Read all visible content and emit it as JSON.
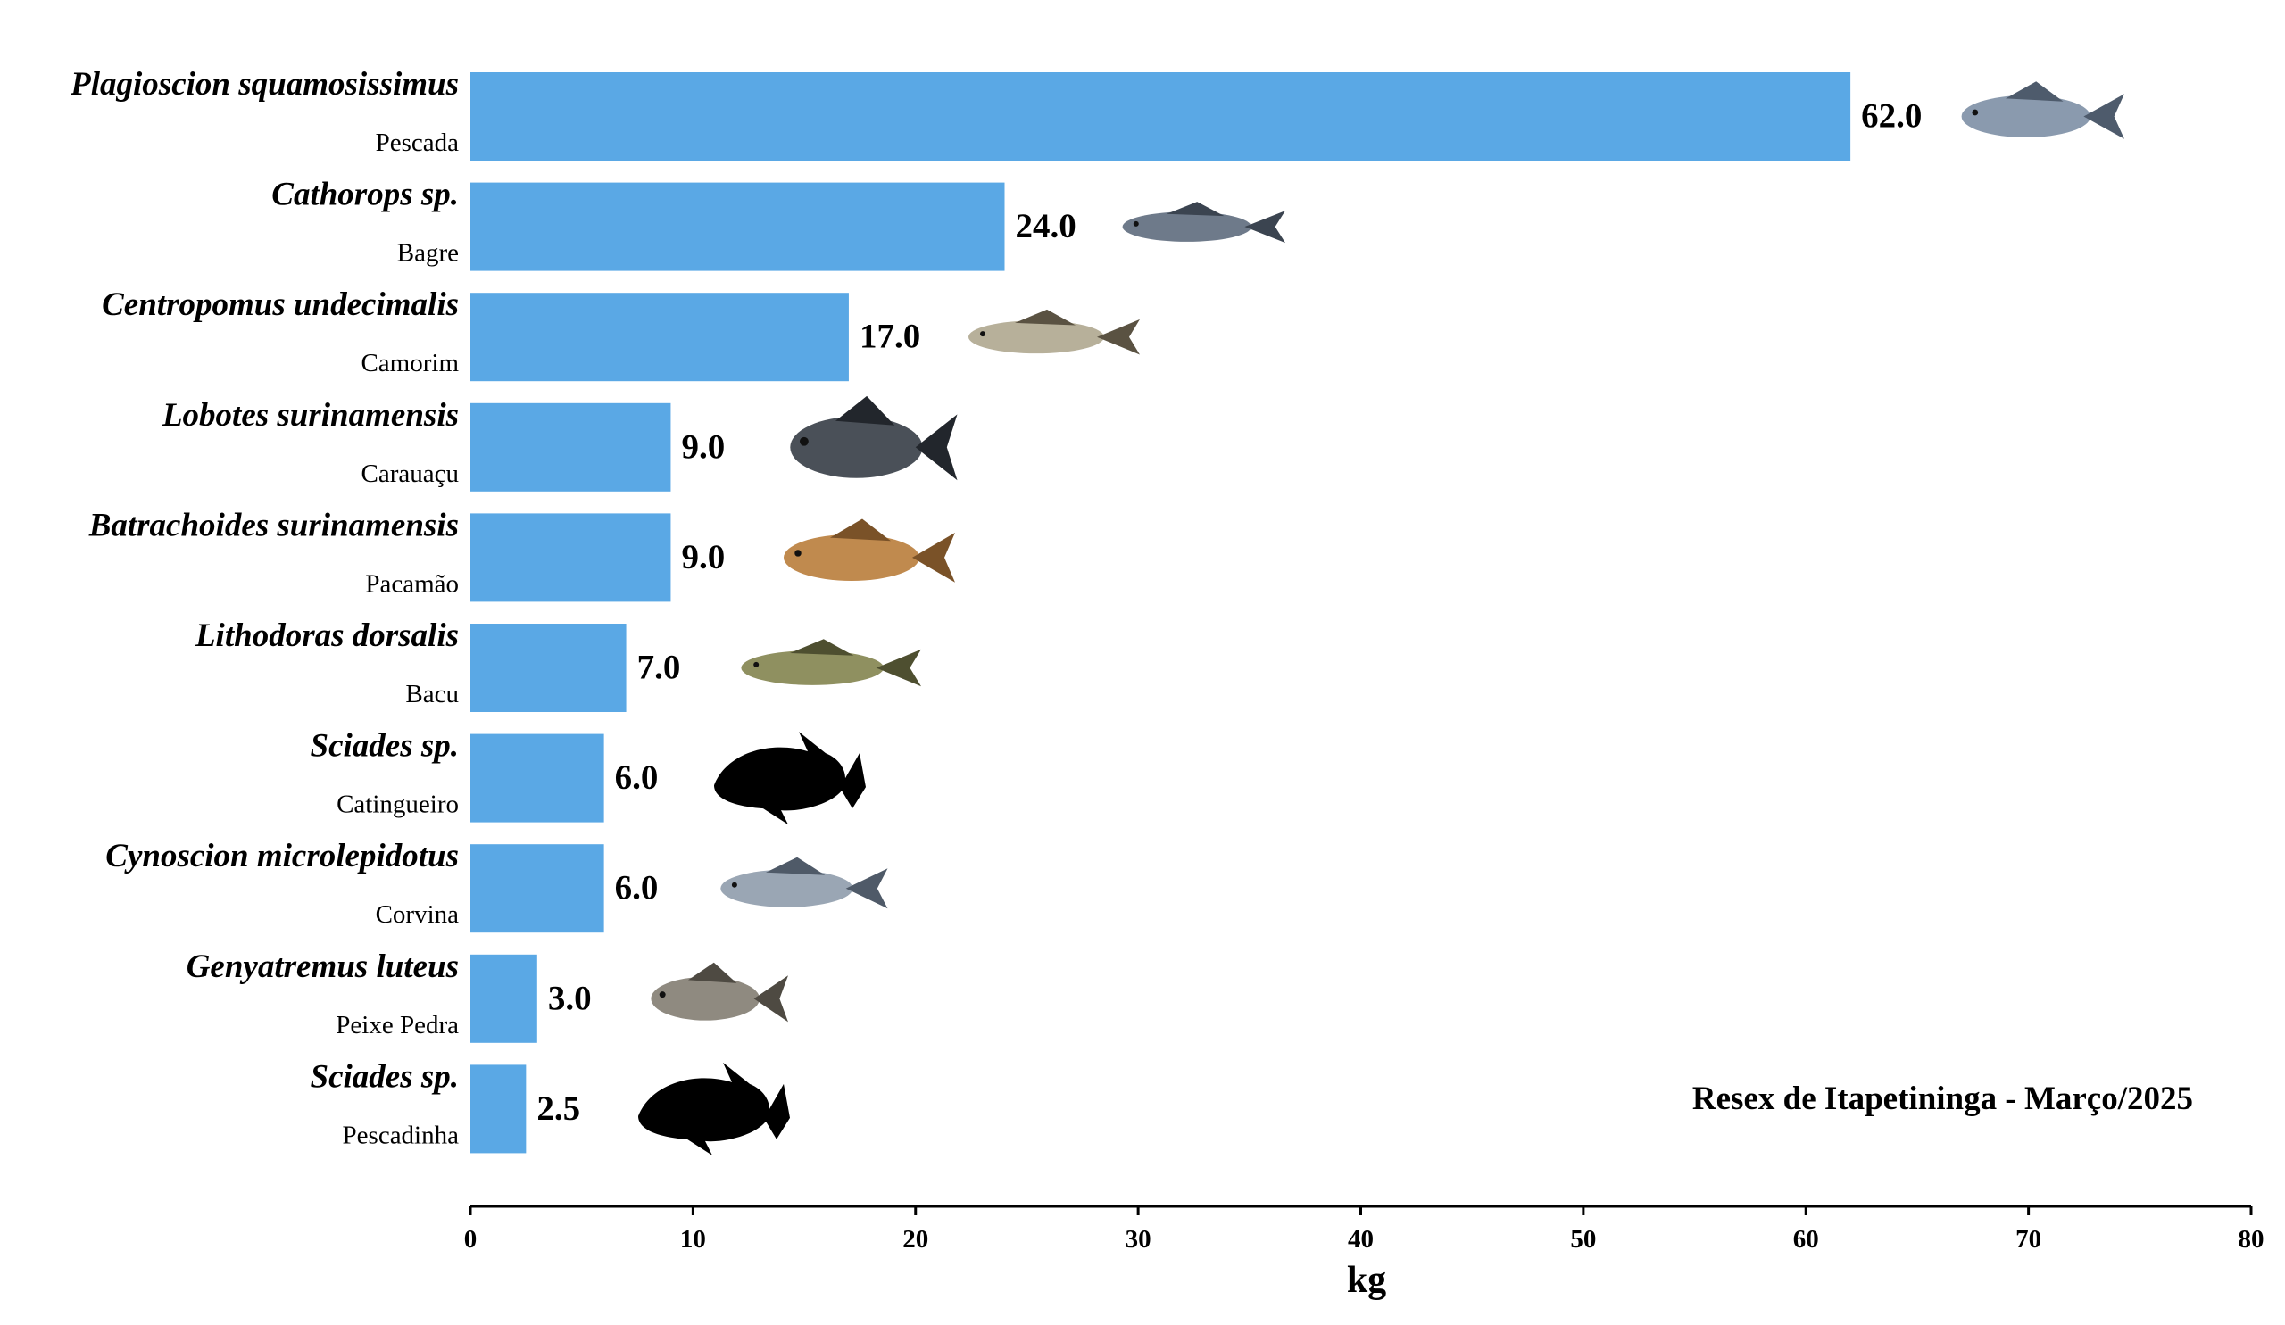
{
  "chart_data": {
    "type": "bar",
    "orientation": "horizontal",
    "title": "",
    "annotation": "Resex de Itapetininga - Março/2025",
    "xlabel": "kg",
    "ylabel": "",
    "xlim": [
      0,
      80
    ],
    "xticks": [
      0,
      10,
      20,
      30,
      40,
      50,
      60,
      70,
      80
    ],
    "grid": false,
    "bar_color": "#5aa8e5",
    "categories": [
      {
        "scientific": "Plagioscion squamosissimus",
        "common": "Pescada",
        "value": 62.0,
        "value_label": "62.0",
        "icon": "fish-photo"
      },
      {
        "scientific": "Cathorops sp.",
        "common": "Bagre",
        "value": 24.0,
        "value_label": "24.0",
        "icon": "catfish-photo"
      },
      {
        "scientific": "Centropomus undecimalis",
        "common": "Camorim",
        "value": 17.0,
        "value_label": "17.0",
        "icon": "snook-photo"
      },
      {
        "scientific": "Lobotes surinamensis",
        "common": "Carauaçu",
        "value": 9.0,
        "value_label": "9.0",
        "icon": "tripletail-photo"
      },
      {
        "scientific": "Batrachoides surinamensis",
        "common": "Pacamão",
        "value": 9.0,
        "value_label": "9.0",
        "icon": "toadfish-photo"
      },
      {
        "scientific": "Lithodoras dorsalis",
        "common": "Bacu",
        "value": 7.0,
        "value_label": "7.0",
        "icon": "armored-catfish-photo"
      },
      {
        "scientific": "Sciades sp.",
        "common": "Catingueiro",
        "value": 6.0,
        "value_label": "6.0",
        "icon": "fish-silhouette"
      },
      {
        "scientific": "Cynoscion microlepidotus",
        "common": "Corvina",
        "value": 6.0,
        "value_label": "6.0",
        "icon": "croaker-photo"
      },
      {
        "scientific": "Genyatremus luteus",
        "common": "Peixe Pedra",
        "value": 3.0,
        "value_label": "3.0",
        "icon": "grunt-photo"
      },
      {
        "scientific": "Sciades sp.",
        "common": "Pescadinha",
        "value": 2.5,
        "value_label": "2.5",
        "icon": "fish-silhouette"
      }
    ]
  }
}
